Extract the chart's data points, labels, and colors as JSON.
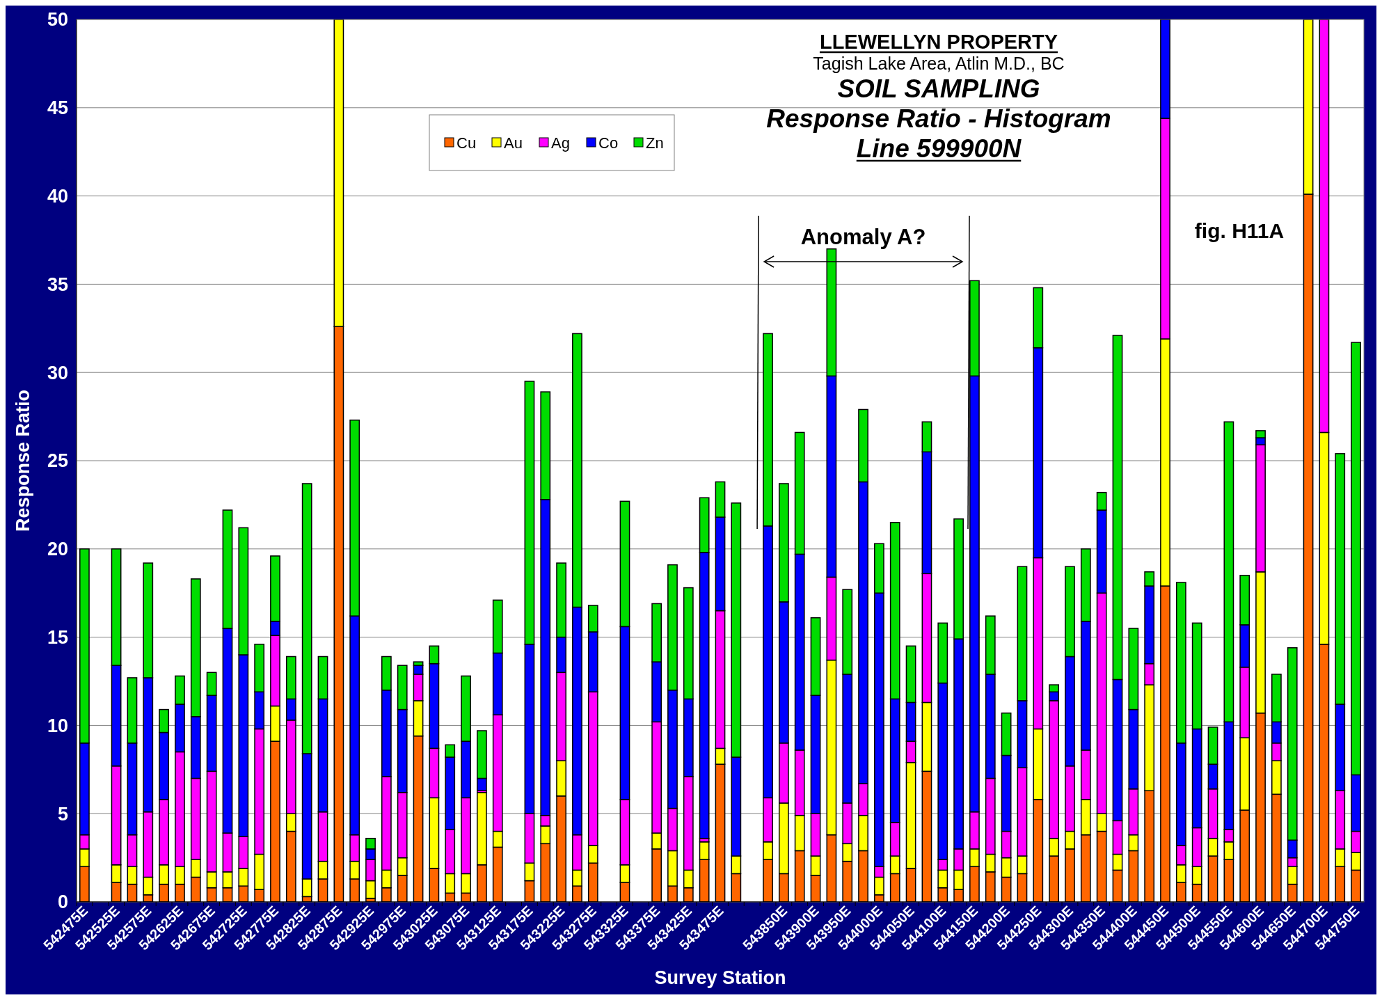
{
  "chart_data": {
    "type": "bar",
    "stacked": true,
    "title": "LLEWELLYN PROPERTY",
    "subtitle": "Tagish Lake Area, Atlin M.D., BC",
    "xlabel": "Survey Station",
    "ylabel": "Response Ratio",
    "annotations": [
      "SOIL SAMPLING",
      "Response Ratio - Histogram",
      "Line 599900N",
      "Anomaly A?",
      "fig. H11A"
    ],
    "categories": [
      "542475E",
      null,
      "542525E",
      null,
      "542575E",
      null,
      "542625E",
      null,
      "542675E",
      null,
      "542725E",
      null,
      "542775E",
      null,
      "542825E",
      null,
      "542875E",
      null,
      "542925E",
      null,
      "542975E",
      null,
      "543025E",
      null,
      "543075E",
      null,
      "543125E",
      null,
      "543175E",
      null,
      "543225E",
      null,
      "543275E",
      null,
      "543325E",
      null,
      "543375E",
      null,
      "543425E",
      null,
      "543475E",
      null,
      null,
      null,
      "543850E",
      null,
      "543900E",
      null,
      "543950E",
      null,
      "544000E",
      null,
      "544050E",
      null,
      "544100E",
      null,
      "544150E",
      null,
      "544200E",
      null,
      "544250E",
      null,
      "544300E",
      null,
      "544350E",
      null,
      "544400E",
      null,
      "544450E",
      null,
      "544500E",
      null,
      "544550E",
      null,
      "544600E",
      null,
      "544650E",
      null,
      "544700E",
      null,
      "544750E"
    ],
    "series": [
      {
        "name": "Cu",
        "color": "#ff6600",
        "values": [
          2.0,
          null,
          1.1,
          1.0,
          0.4,
          1.0,
          1.0,
          1.4,
          0.8,
          0.8,
          0.9,
          0.7,
          9.1,
          4.0,
          0.3,
          1.3,
          32.6,
          1.3,
          0.2,
          0.8,
          1.5,
          9.4,
          1.9,
          0.5,
          0.5,
          2.1,
          3.1,
          null,
          1.2,
          3.3,
          6.0,
          0.9,
          2.2,
          null,
          1.1,
          null,
          3.0,
          0.9,
          0.8,
          2.4,
          7.8,
          1.6,
          null,
          2.4,
          1.6,
          2.9,
          1.5,
          3.8,
          2.3,
          2.9,
          0.4,
          1.6,
          1.9,
          7.4,
          0.8,
          0.7,
          2.0,
          1.7,
          1.4,
          1.6,
          5.8,
          2.6,
          3.0,
          3.8,
          4.0,
          1.8,
          2.9,
          6.3,
          17.9,
          1.1,
          1.0,
          2.6,
          2.4,
          5.2,
          10.7,
          6.1,
          1.0,
          40.1,
          14.6,
          2.0,
          1.8
        ]
      },
      {
        "name": "Au",
        "color": "#ffff00",
        "values": [
          1.0,
          null,
          1.0,
          1.0,
          1.0,
          1.1,
          1.0,
          1.0,
          0.9,
          0.9,
          1.0,
          2.0,
          2.0,
          1.0,
          1.0,
          1.0,
          17.4,
          1.0,
          1.0,
          1.0,
          1.0,
          2.0,
          4.0,
          1.1,
          1.1,
          4.1,
          0.9,
          null,
          1.0,
          1.0,
          2.0,
          0.9,
          1.0,
          null,
          1.0,
          null,
          0.9,
          2.0,
          1.0,
          1.0,
          0.9,
          1.0,
          null,
          1.0,
          4.0,
          2.0,
          1.1,
          9.9,
          1.0,
          2.0,
          1.0,
          1.0,
          6.0,
          3.9,
          1.0,
          1.1,
          1.0,
          1.0,
          1.1,
          1.0,
          4.0,
          1.0,
          1.0,
          2.0,
          1.0,
          0.9,
          0.9,
          6.0,
          14.0,
          1.0,
          1.0,
          1.0,
          1.0,
          4.1,
          8.0,
          1.9,
          1.0,
          9.9,
          12.0,
          1.0,
          1.0
        ]
      },
      {
        "name": "Ag",
        "color": "#ff00ff",
        "values": [
          0.8,
          null,
          5.6,
          1.8,
          3.7,
          3.7,
          6.5,
          4.6,
          5.7,
          2.2,
          1.8,
          7.1,
          4.0,
          5.3,
          0.0,
          2.8,
          null,
          1.5,
          1.2,
          5.3,
          3.7,
          1.5,
          2.8,
          2.5,
          4.3,
          0.1,
          6.6,
          null,
          2.8,
          0.6,
          5.0,
          2.0,
          8.7,
          null,
          3.7,
          null,
          6.3,
          2.4,
          5.3,
          0.2,
          7.8,
          0.0,
          null,
          2.5,
          3.4,
          3.7,
          2.4,
          4.7,
          2.3,
          1.8,
          0.6,
          1.9,
          1.2,
          7.3,
          0.6,
          1.2,
          2.1,
          4.3,
          1.5,
          5.0,
          9.7,
          7.8,
          3.7,
          2.8,
          12.5,
          1.9,
          2.6,
          1.2,
          12.5,
          1.1,
          2.2,
          2.8,
          0.7,
          4.0,
          7.2,
          1.0,
          0.5,
          null,
          23.4,
          3.3,
          1.2
        ]
      },
      {
        "name": "Co",
        "color": "#0000ff",
        "values": [
          5.2,
          null,
          5.7,
          5.2,
          7.6,
          3.8,
          2.7,
          3.5,
          4.3,
          11.6,
          10.3,
          2.1,
          0.8,
          1.2,
          7.1,
          6.4,
          null,
          12.4,
          0.6,
          4.9,
          4.7,
          0.5,
          4.8,
          4.1,
          3.2,
          0.7,
          3.5,
          null,
          9.6,
          17.9,
          2.0,
          12.9,
          3.4,
          null,
          9.8,
          null,
          3.4,
          6.7,
          4.4,
          16.2,
          5.3,
          5.6,
          null,
          15.4,
          8.0,
          11.1,
          6.7,
          11.4,
          7.3,
          17.1,
          15.5,
          7.0,
          2.2,
          6.9,
          10.0,
          11.9,
          24.7,
          5.9,
          4.3,
          3.8,
          11.9,
          0.5,
          6.2,
          7.3,
          4.7,
          8.0,
          4.5,
          4.4,
          5.6,
          5.8,
          5.6,
          1.4,
          6.1,
          2.4,
          0.4,
          1.2,
          1.0,
          null,
          null,
          4.9,
          3.2
        ]
      },
      {
        "name": "Zn",
        "color": "#00dd00",
        "values": [
          11.0,
          null,
          6.6,
          3.7,
          6.5,
          1.3,
          1.6,
          7.8,
          1.3,
          6.7,
          7.2,
          2.7,
          3.7,
          2.4,
          15.3,
          2.4,
          null,
          11.1,
          0.6,
          1.9,
          2.5,
          0.2,
          1.0,
          0.7,
          3.7,
          2.7,
          3.0,
          null,
          14.9,
          6.1,
          4.2,
          15.5,
          1.5,
          null,
          7.1,
          null,
          3.3,
          7.1,
          6.3,
          3.1,
          2.0,
          14.4,
          null,
          10.9,
          6.7,
          6.9,
          4.4,
          7.2,
          4.8,
          4.1,
          2.8,
          10.0,
          3.2,
          1.7,
          3.4,
          6.8,
          5.4,
          3.3,
          2.4,
          7.6,
          3.4,
          0.4,
          5.1,
          4.1,
          1.0,
          19.5,
          4.6,
          0.8,
          null,
          9.1,
          6.0,
          2.1,
          17.0,
          2.8,
          0.4,
          2.7,
          10.9,
          null,
          null,
          14.2,
          24.5
        ]
      }
    ],
    "ylim": [
      0,
      50
    ],
    "yticks": [
      0,
      5,
      10,
      15,
      20,
      25,
      30,
      35,
      40,
      45,
      50
    ],
    "grid": "y",
    "legend": "top left"
  }
}
